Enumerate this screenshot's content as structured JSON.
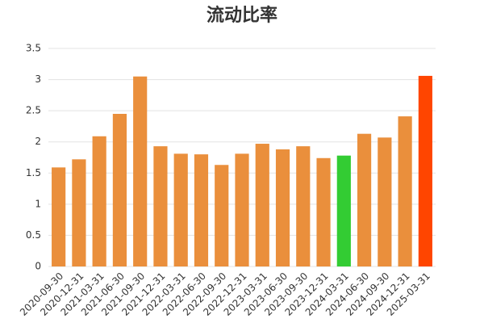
{
  "chart_data": {
    "type": "bar",
    "title": "流动比率",
    "categories": [
      "2020-09-30",
      "2020-12-31",
      "2021-03-31",
      "2021-06-30",
      "2021-09-30",
      "2021-12-31",
      "2022-03-31",
      "2022-06-30",
      "2022-09-30",
      "2022-12-31",
      "2023-03-31",
      "2023-06-30",
      "2023-09-30",
      "2023-12-31",
      "2024-03-31",
      "2024-06-30",
      "2024-09-30",
      "2024-12-31",
      "2025-03-31"
    ],
    "values": [
      1.59,
      1.72,
      2.09,
      2.45,
      3.05,
      1.93,
      1.81,
      1.8,
      1.63,
      1.81,
      1.97,
      1.88,
      1.93,
      1.74,
      1.78,
      2.13,
      2.07,
      2.41,
      3.06
    ],
    "colors": [
      "#ea8f3c",
      "#ea8f3c",
      "#ea8f3c",
      "#ea8f3c",
      "#ea8f3c",
      "#ea8f3c",
      "#ea8f3c",
      "#ea8f3c",
      "#ea8f3c",
      "#ea8f3c",
      "#ea8f3c",
      "#ea8f3c",
      "#ea8f3c",
      "#ea8f3c",
      "#33cc33",
      "#ea8f3c",
      "#ea8f3c",
      "#ea8f3c",
      "#ff4500"
    ],
    "ylim": [
      0,
      3.5
    ],
    "yticks": [
      0,
      0.5,
      1,
      1.5,
      2,
      2.5,
      3,
      3.5
    ],
    "grid": true
  }
}
